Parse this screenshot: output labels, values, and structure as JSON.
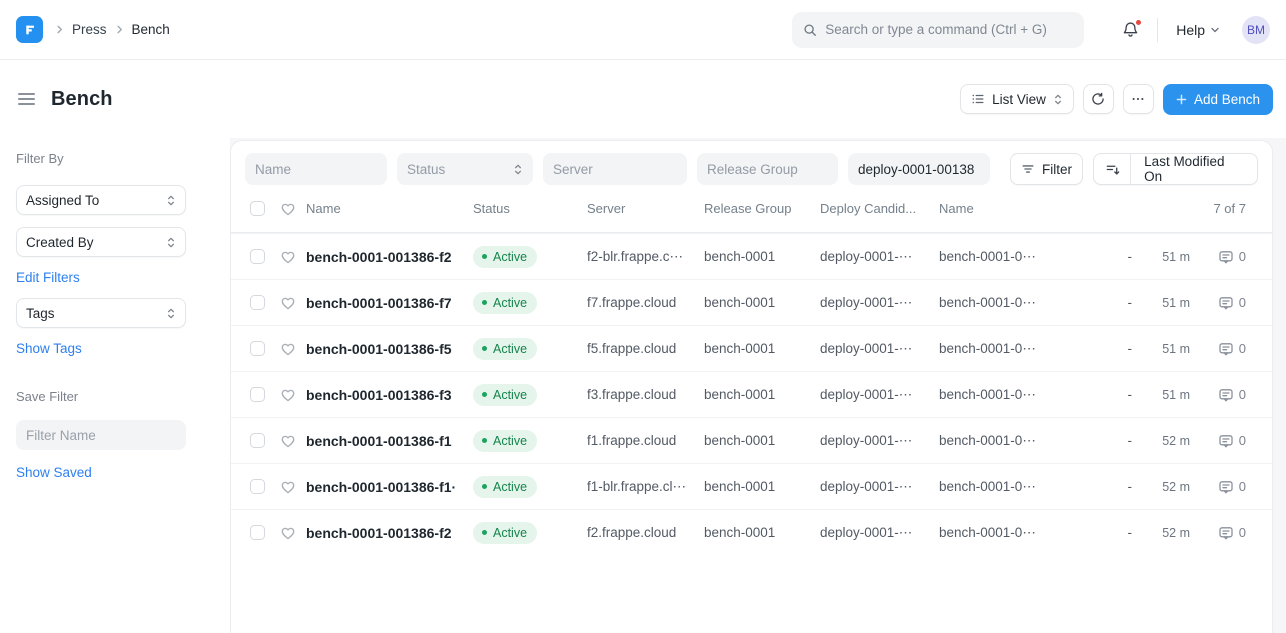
{
  "topbar": {
    "breadcrumbs": [
      "Press",
      "Bench"
    ],
    "search_placeholder": "Search or type a command (Ctrl + G)",
    "help_label": "Help",
    "avatar_initials": "BM"
  },
  "page_header": {
    "title": "Bench",
    "view_button_label": "List View",
    "add_button_label": "Add Bench"
  },
  "sidebar": {
    "filter_by_label": "Filter By",
    "assigned_to_label": "Assigned To",
    "created_by_label": "Created By",
    "edit_filters_link": "Edit Filters",
    "tags_label": "Tags",
    "show_tags_link": "Show Tags",
    "save_filter_label": "Save Filter",
    "filter_name_placeholder": "Filter Name",
    "show_saved_link": "Show Saved"
  },
  "list": {
    "filter_inputs": [
      {
        "placeholder": "Name",
        "value": "",
        "kind": "text"
      },
      {
        "placeholder": "Status",
        "value": "",
        "kind": "select"
      },
      {
        "placeholder": "Server",
        "value": "",
        "kind": "text"
      },
      {
        "placeholder": "Release Group",
        "value": "",
        "kind": "text"
      },
      {
        "placeholder": "",
        "value": "deploy-0001-00138",
        "kind": "text"
      }
    ],
    "filter_button_label": "Filter",
    "sort_button_label": "Last Modified On",
    "columns": [
      "Name",
      "Status",
      "Server",
      "Release Group",
      "Deploy Candid...",
      "Name"
    ],
    "count_label": "7 of 7",
    "rows": [
      {
        "name": "bench-0001-001386-f2",
        "status": "Active",
        "server": "f2-blr.frappe.c⋯",
        "release_group": "bench-0001",
        "deploy_candidate": "deploy-0001-⋯",
        "name2": "bench-0001-0⋯",
        "dash": "-",
        "modified": "51 m",
        "comments": "0"
      },
      {
        "name": "bench-0001-001386-f7",
        "status": "Active",
        "server": "f7.frappe.cloud",
        "release_group": "bench-0001",
        "deploy_candidate": "deploy-0001-⋯",
        "name2": "bench-0001-0⋯",
        "dash": "-",
        "modified": "51 m",
        "comments": "0"
      },
      {
        "name": "bench-0001-001386-f5",
        "status": "Active",
        "server": "f5.frappe.cloud",
        "release_group": "bench-0001",
        "deploy_candidate": "deploy-0001-⋯",
        "name2": "bench-0001-0⋯",
        "dash": "-",
        "modified": "51 m",
        "comments": "0"
      },
      {
        "name": "bench-0001-001386-f3",
        "status": "Active",
        "server": "f3.frappe.cloud",
        "release_group": "bench-0001",
        "deploy_candidate": "deploy-0001-⋯",
        "name2": "bench-0001-0⋯",
        "dash": "-",
        "modified": "51 m",
        "comments": "0"
      },
      {
        "name": "bench-0001-001386-f1",
        "status": "Active",
        "server": "f1.frappe.cloud",
        "release_group": "bench-0001",
        "deploy_candidate": "deploy-0001-⋯",
        "name2": "bench-0001-0⋯",
        "dash": "-",
        "modified": "52 m",
        "comments": "0"
      },
      {
        "name": "bench-0001-001386-f1·",
        "status": "Active",
        "server": "f1-blr.frappe.cl⋯",
        "release_group": "bench-0001",
        "deploy_candidate": "deploy-0001-⋯",
        "name2": "bench-0001-0⋯",
        "dash": "-",
        "modified": "52 m",
        "comments": "0"
      },
      {
        "name": "bench-0001-001386-f2",
        "status": "Active",
        "server": "f2.frappe.cloud",
        "release_group": "bench-0001",
        "deploy_candidate": "deploy-0001-⋯",
        "name2": "bench-0001-0⋯",
        "dash": "-",
        "modified": "52 m",
        "comments": "0"
      }
    ]
  },
  "colors": {
    "accent_blue": "#2B92EE",
    "link_blue": "#2D7FF0",
    "status_green_text": "#16834D",
    "status_green_bg": "#E5F5EB",
    "notification_red": "#E8483F"
  }
}
